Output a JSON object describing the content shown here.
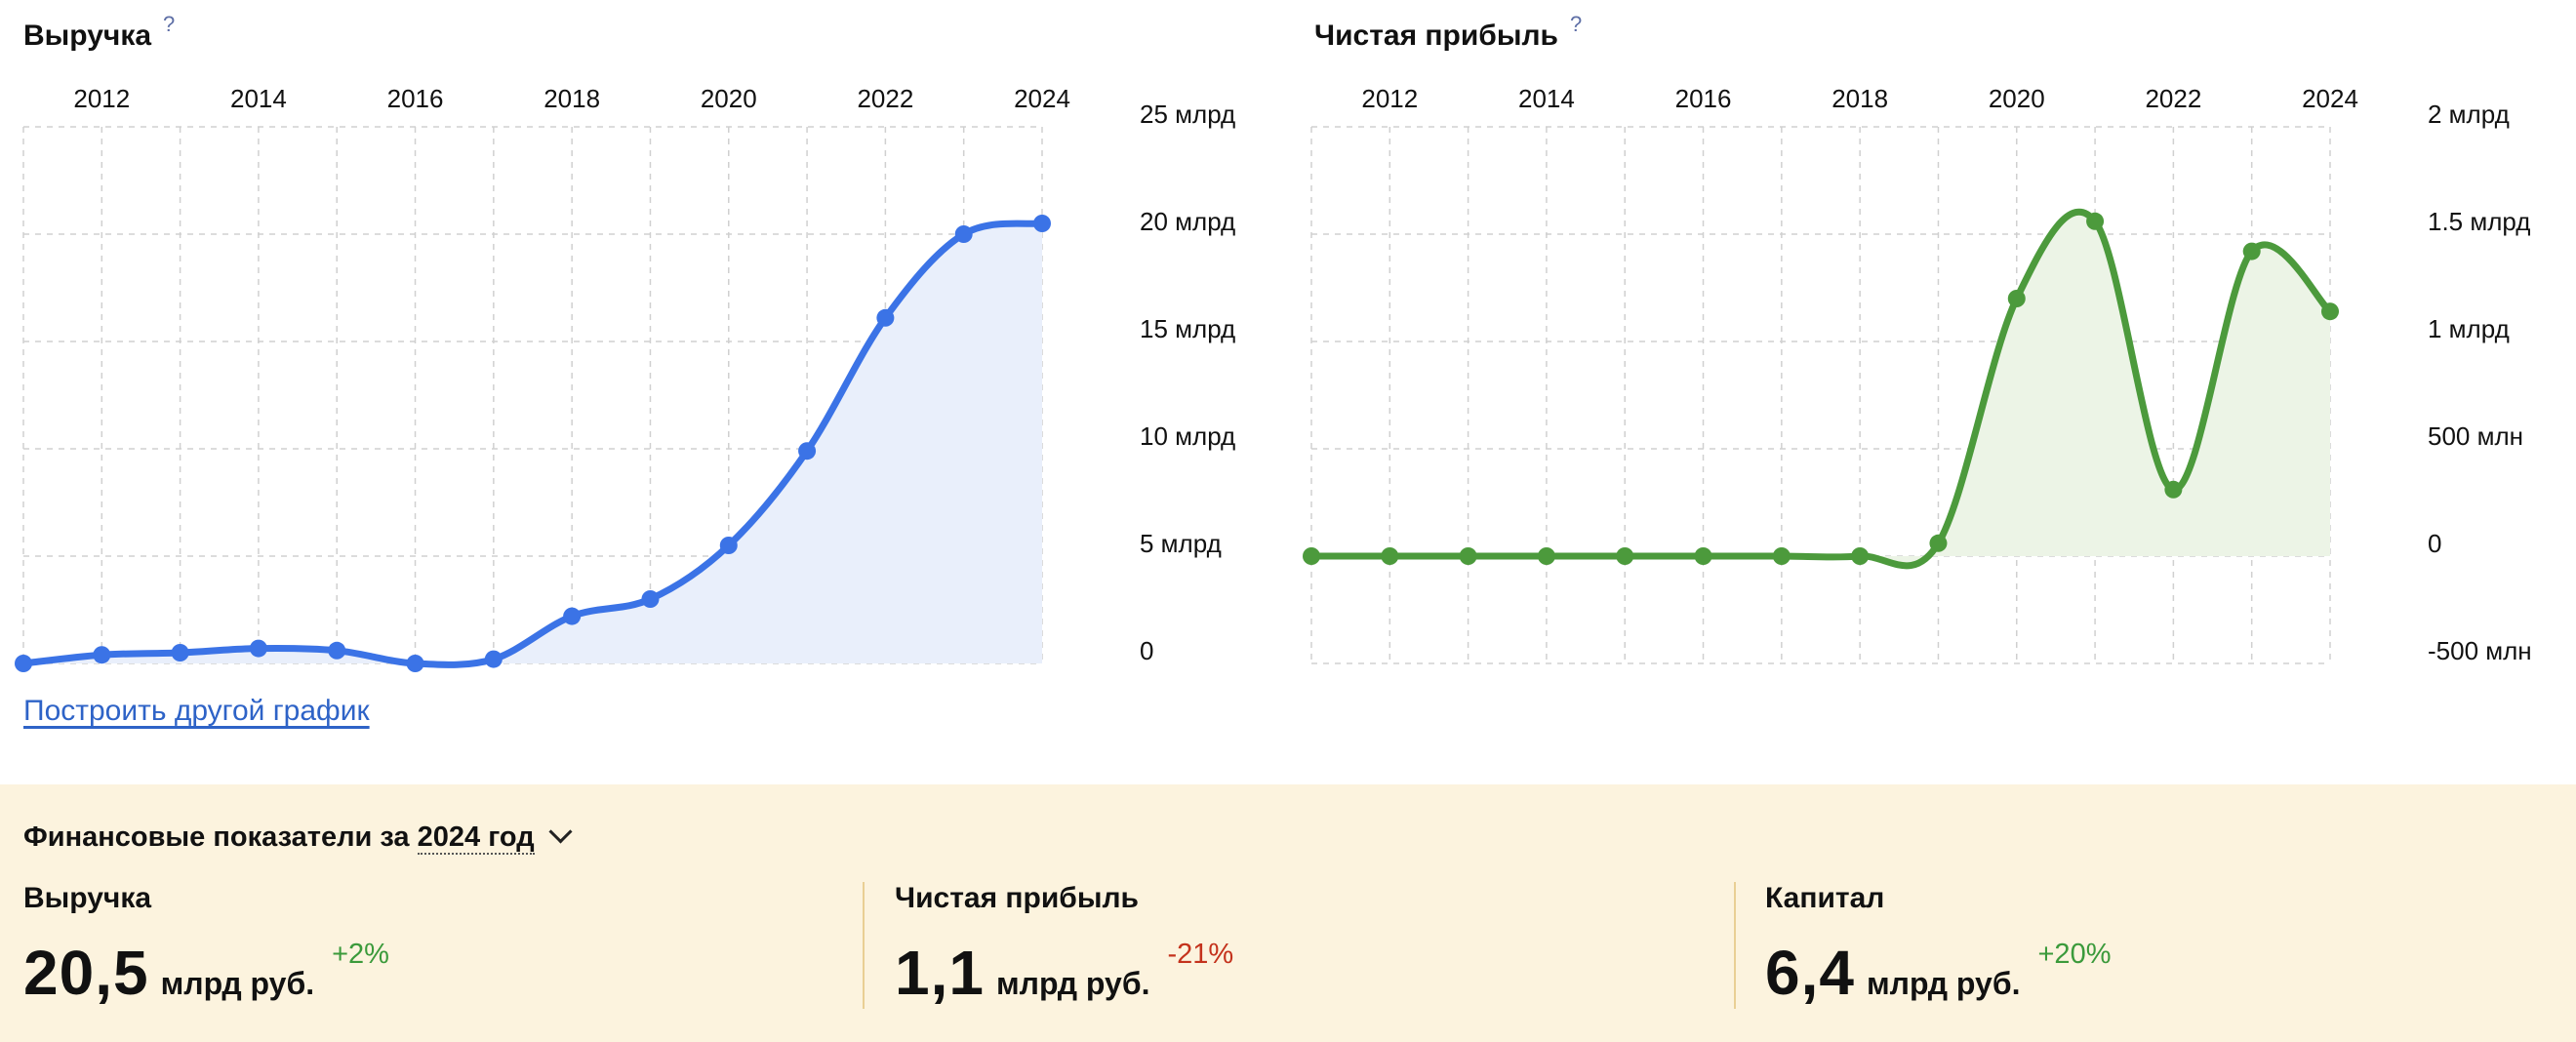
{
  "charts": {
    "revenue": {
      "title": "Выручка",
      "help": "?",
      "color": "#3b73e6",
      "fill": "#e9effb",
      "x_labels": [
        "2012",
        "2014",
        "2016",
        "2018",
        "2020",
        "2022",
        "2024"
      ],
      "y_labels": [
        "25 млрд",
        "20 млрд",
        "15 млрд",
        "10 млрд",
        "5 млрд",
        "0"
      ]
    },
    "profit": {
      "title": "Чистая прибыль",
      "help": "?",
      "color": "#4c9a3c",
      "fill": "#ecf4e6",
      "x_labels": [
        "2012",
        "2014",
        "2016",
        "2018",
        "2020",
        "2022",
        "2024"
      ],
      "y_labels": [
        "2 млрд",
        "1.5 млрд",
        "1 млрд",
        "500 млн",
        "0",
        "-500 млн"
      ]
    }
  },
  "chart_data": [
    {
      "type": "area",
      "title": "Выручка",
      "x": [
        2011,
        2012,
        2013,
        2014,
        2015,
        2016,
        2017,
        2018,
        2019,
        2020,
        2021,
        2022,
        2023,
        2024
      ],
      "series": [
        {
          "values": [
            0,
            0.4,
            0.5,
            0.7,
            0.6,
            0,
            0.2,
            2.2,
            3.0,
            5.5,
            9.9,
            16.1,
            20.0,
            20.5
          ]
        }
      ],
      "ylim": [
        0,
        25
      ],
      "y_unit": "млрд",
      "grid": true
    },
    {
      "type": "area",
      "title": "Чистая прибыль",
      "x": [
        2011,
        2012,
        2013,
        2014,
        2015,
        2016,
        2017,
        2018,
        2019,
        2020,
        2021,
        2022,
        2023,
        2024
      ],
      "series": [
        {
          "values": [
            0,
            0,
            0,
            0,
            0,
            0,
            0,
            0,
            0.06,
            1.2,
            1.56,
            0.31,
            1.42,
            1.14
          ]
        }
      ],
      "ylim": [
        -0.5,
        2
      ],
      "y_unit": "млрд",
      "grid": true
    }
  ],
  "link": {
    "other_chart": "Построить другой график"
  },
  "finance": {
    "header_prefix": "Финансовые показатели за",
    "year": "2024 год",
    "metrics": [
      {
        "label": "Выручка",
        "value": "20,5",
        "unit": "млрд руб.",
        "change": "+2%",
        "trend": "pos"
      },
      {
        "label": "Чистая прибыль",
        "value": "1,1",
        "unit": "млрд руб.",
        "change": "-21%",
        "trend": "neg"
      },
      {
        "label": "Капитал",
        "value": "6,4",
        "unit": "млрд руб.",
        "change": "+20%",
        "trend": "pos"
      }
    ]
  }
}
